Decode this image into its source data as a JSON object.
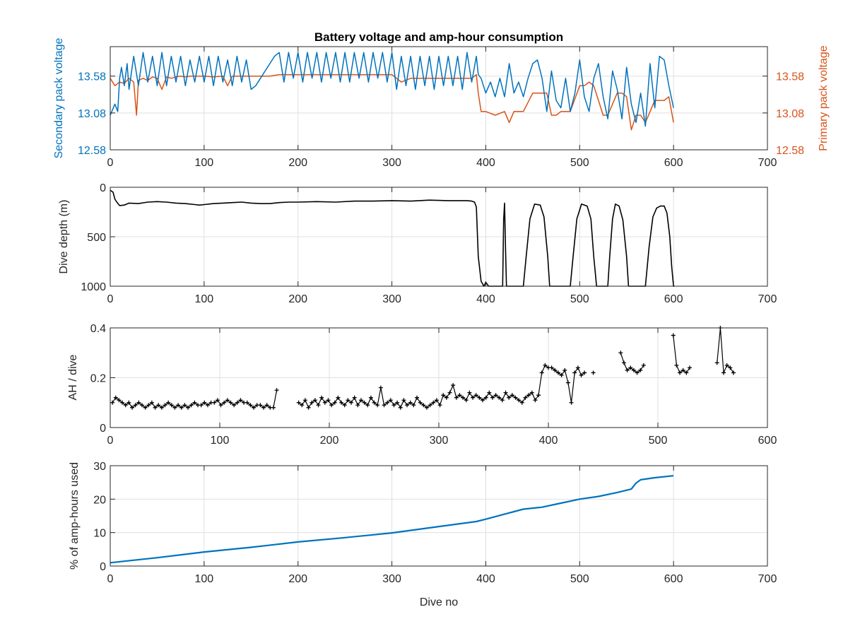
{
  "chart_data": [
    {
      "type": "line",
      "title": "Battery voltage and amp-hour consumption",
      "xlim": [
        0,
        700
      ],
      "xticks": [
        0,
        100,
        200,
        300,
        400,
        500,
        600,
        700
      ],
      "grid": true,
      "y_left": {
        "label": "Secondary pack voltage",
        "lim": [
          12.58,
          13.98
        ],
        "ticks": [
          "12.58",
          "13.08",
          "13.58"
        ],
        "color": "#0072BD"
      },
      "y_right": {
        "label": "Primary pack voltage",
        "lim": [
          12.58,
          13.98
        ],
        "ticks": [
          "12.58",
          "13.08",
          "13.58"
        ],
        "color": "#D95319"
      },
      "series": [
        {
          "name": "Secondary pack voltage",
          "axis": "left",
          "color": "#0072BD",
          "x": [
            0,
            5,
            8,
            10,
            12,
            15,
            18,
            20,
            25,
            30,
            35,
            40,
            45,
            50,
            55,
            60,
            65,
            70,
            75,
            80,
            85,
            90,
            95,
            100,
            105,
            110,
            115,
            120,
            125,
            130,
            135,
            140,
            145,
            150,
            155,
            160,
            165,
            170,
            175,
            180,
            185,
            190,
            195,
            200,
            205,
            210,
            215,
            220,
            225,
            230,
            235,
            240,
            245,
            250,
            255,
            260,
            265,
            270,
            275,
            280,
            285,
            290,
            295,
            300,
            305,
            310,
            315,
            320,
            325,
            330,
            335,
            340,
            345,
            350,
            355,
            360,
            365,
            370,
            375,
            380,
            385,
            390,
            392,
            395,
            400,
            405,
            410,
            415,
            420,
            425,
            430,
            435,
            440,
            445,
            450,
            455,
            460,
            465,
            470,
            475,
            480,
            485,
            490,
            495,
            500,
            505,
            510,
            515,
            520,
            525,
            530,
            535,
            540,
            545,
            550,
            555,
            560,
            565,
            570,
            575,
            580,
            585,
            590,
            595,
            600
          ],
          "y": [
            13.05,
            13.2,
            13.1,
            13.55,
            13.7,
            13.45,
            13.75,
            13.4,
            13.85,
            13.45,
            13.9,
            13.5,
            13.85,
            13.45,
            13.9,
            13.45,
            13.85,
            13.5,
            13.85,
            13.45,
            13.8,
            13.5,
            13.85,
            13.5,
            13.85,
            13.45,
            13.85,
            13.5,
            13.8,
            13.45,
            13.85,
            13.5,
            13.8,
            13.4,
            13.45,
            13.55,
            13.65,
            13.75,
            13.85,
            13.9,
            13.5,
            13.9,
            13.55,
            13.9,
            13.5,
            13.9,
            13.55,
            13.9,
            13.5,
            13.9,
            13.55,
            13.9,
            13.5,
            13.9,
            13.5,
            13.9,
            13.55,
            13.9,
            13.5,
            13.9,
            13.55,
            13.9,
            13.5,
            13.9,
            13.4,
            13.85,
            13.45,
            13.85,
            13.4,
            13.85,
            13.45,
            13.85,
            13.4,
            13.85,
            13.45,
            13.85,
            13.45,
            13.85,
            13.4,
            13.9,
            13.5,
            13.85,
            13.6,
            13.55,
            13.35,
            13.5,
            13.3,
            13.55,
            13.3,
            13.75,
            13.35,
            13.5,
            13.3,
            13.55,
            13.75,
            13.8,
            13.55,
            13.1,
            13.65,
            13.25,
            13.15,
            13.55,
            13.1,
            13.35,
            13.8,
            13.3,
            13.1,
            13.55,
            13.75,
            13.3,
            13.0,
            13.65,
            13.4,
            13.0,
            13.7,
            13.2,
            12.95,
            13.35,
            12.9,
            13.75,
            13.15,
            13.85,
            13.8,
            13.45,
            13.15
          ]
        },
        {
          "name": "Primary pack voltage",
          "axis": "right",
          "color": "#D95319",
          "x": [
            0,
            5,
            10,
            15,
            20,
            25,
            28,
            30,
            35,
            40,
            45,
            50,
            55,
            60,
            65,
            70,
            75,
            80,
            85,
            90,
            95,
            100,
            110,
            120,
            125,
            130,
            140,
            150,
            160,
            170,
            180,
            190,
            200,
            210,
            220,
            230,
            240,
            250,
            260,
            270,
            280,
            290,
            300,
            310,
            320,
            330,
            340,
            350,
            360,
            370,
            380,
            385,
            390,
            392,
            395,
            400,
            410,
            420,
            425,
            430,
            440,
            450,
            455,
            460,
            465,
            470,
            475,
            480,
            490,
            500,
            505,
            510,
            515,
            520,
            525,
            530,
            540,
            545,
            550,
            555,
            560,
            565,
            570,
            580,
            590,
            595,
            600
          ],
          "y": [
            13.55,
            13.45,
            13.5,
            13.48,
            13.55,
            13.5,
            13.05,
            13.52,
            13.55,
            13.52,
            13.57,
            13.55,
            13.4,
            13.57,
            13.55,
            13.57,
            13.58,
            13.57,
            13.58,
            13.58,
            13.58,
            13.58,
            13.57,
            13.58,
            13.45,
            13.58,
            13.58,
            13.58,
            13.58,
            13.58,
            13.6,
            13.6,
            13.6,
            13.6,
            13.6,
            13.6,
            13.6,
            13.6,
            13.6,
            13.6,
            13.6,
            13.6,
            13.6,
            13.5,
            13.55,
            13.55,
            13.55,
            13.55,
            13.55,
            13.55,
            13.55,
            13.55,
            13.6,
            13.35,
            13.1,
            13.1,
            13.05,
            13.1,
            12.95,
            13.1,
            13.1,
            13.35,
            13.35,
            13.35,
            13.35,
            13.05,
            13.05,
            13.1,
            13.1,
            13.45,
            13.45,
            13.5,
            13.45,
            13.25,
            13.05,
            13.05,
            13.35,
            13.35,
            13.3,
            12.85,
            13.05,
            13.05,
            12.95,
            13.25,
            13.25,
            13.3,
            12.95
          ]
        }
      ]
    },
    {
      "type": "line",
      "xlim": [
        0,
        700
      ],
      "xticks": [
        0,
        100,
        200,
        300,
        400,
        500,
        600,
        700
      ],
      "ylabel": "Dive depth (m)",
      "ylim": [
        0,
        1000
      ],
      "y_reversed": true,
      "yticks": [
        0,
        500,
        1000
      ],
      "grid": true,
      "series": [
        {
          "color": "#000000",
          "x": [
            0,
            3,
            5,
            7,
            10,
            15,
            20,
            30,
            40,
            50,
            60,
            70,
            80,
            90,
            95,
            100,
            110,
            120,
            130,
            140,
            150,
            160,
            170,
            180,
            190,
            200,
            220,
            240,
            260,
            280,
            300,
            320,
            340,
            360,
            370,
            380,
            385,
            388,
            390,
            392,
            395,
            398,
            400,
            403,
            405,
            418,
            419,
            420,
            421,
            422,
            440,
            443,
            447,
            452,
            458,
            462,
            466,
            468,
            470,
            490,
            493,
            497,
            502,
            508,
            512,
            515,
            518,
            520,
            530,
            532,
            535,
            538,
            542,
            546,
            550,
            552,
            570,
            574,
            578,
            582,
            586,
            590,
            593,
            596,
            598,
            600,
            601
          ],
          "y": [
            30,
            50,
            120,
            150,
            185,
            180,
            160,
            165,
            150,
            145,
            150,
            160,
            165,
            175,
            180,
            175,
            165,
            160,
            155,
            150,
            160,
            165,
            165,
            155,
            150,
            150,
            145,
            150,
            140,
            140,
            135,
            140,
            130,
            135,
            135,
            135,
            140,
            150,
            200,
            700,
            950,
            1000,
            960,
            1000,
            1000,
            1000,
            330,
            160,
            600,
            1000,
            1000,
            700,
            320,
            170,
            180,
            300,
            700,
            1000,
            1000,
            1000,
            700,
            320,
            170,
            190,
            320,
            700,
            1000,
            1000,
            1000,
            700,
            320,
            170,
            190,
            330,
            700,
            1000,
            1000,
            600,
            300,
            210,
            190,
            190,
            260,
            500,
            800,
            1000,
            1000
          ]
        }
      ]
    },
    {
      "type": "scatter",
      "xlim": [
        0,
        600
      ],
      "xticks": [
        0,
        100,
        200,
        300,
        400,
        500,
        600
      ],
      "ylabel": "AH / dive",
      "ylim": [
        0,
        0.4
      ],
      "yticks": [
        "0",
        "0.2",
        "0.4"
      ],
      "grid": true,
      "series": [
        {
          "color": "#000000",
          "x": [
            2,
            5,
            8,
            11,
            14,
            17,
            20,
            23,
            26,
            29,
            32,
            35,
            38,
            41,
            44,
            47,
            50,
            53,
            56,
            59,
            62,
            65,
            68,
            71,
            74,
            77,
            80,
            83,
            86,
            89,
            92,
            95,
            98,
            101,
            104,
            107,
            110,
            113,
            116,
            119,
            122,
            125,
            128,
            131,
            134,
            137,
            140,
            143,
            146,
            149,
            152,
            172,
            175,
            178,
            181,
            184,
            187,
            190,
            193,
            196,
            199,
            202,
            205,
            208,
            211,
            214,
            217,
            220,
            223,
            226,
            229,
            232,
            235,
            238,
            241,
            244,
            247,
            250,
            253,
            256,
            259,
            262,
            265,
            268,
            271,
            274,
            277,
            280,
            283,
            286,
            289,
            292,
            295,
            298,
            301,
            304,
            307,
            310,
            313,
            316,
            319,
            322,
            325,
            328,
            331,
            334,
            337,
            340,
            343,
            346,
            349,
            352,
            355,
            358,
            361,
            364,
            367,
            370,
            373,
            376,
            379,
            382,
            385,
            388,
            391,
            394,
            397,
            400,
            403,
            406,
            409,
            412,
            415,
            418,
            421,
            424,
            427,
            430,
            433,
            441,
            466,
            469,
            472,
            475,
            478,
            481,
            484,
            487,
            514,
            517,
            520,
            523,
            526,
            529,
            554,
            557,
            560,
            563,
            566,
            569
          ],
          "y": [
            0.1,
            0.12,
            0.11,
            0.1,
            0.09,
            0.1,
            0.08,
            0.09,
            0.1,
            0.09,
            0.08,
            0.09,
            0.1,
            0.08,
            0.09,
            0.08,
            0.09,
            0.1,
            0.09,
            0.08,
            0.09,
            0.08,
            0.09,
            0.08,
            0.09,
            0.1,
            0.09,
            0.09,
            0.1,
            0.09,
            0.1,
            0.1,
            0.11,
            0.09,
            0.1,
            0.11,
            0.1,
            0.09,
            0.1,
            0.11,
            0.1,
            0.1,
            0.09,
            0.08,
            0.09,
            0.09,
            0.08,
            0.09,
            0.08,
            0.08,
            0.15,
            0.1,
            0.09,
            0.11,
            0.08,
            0.1,
            0.11,
            0.09,
            0.12,
            0.1,
            0.11,
            0.09,
            0.1,
            0.12,
            0.1,
            0.09,
            0.11,
            0.1,
            0.12,
            0.09,
            0.11,
            0.1,
            0.09,
            0.12,
            0.1,
            0.09,
            0.16,
            0.09,
            0.1,
            0.11,
            0.09,
            0.1,
            0.08,
            0.11,
            0.09,
            0.1,
            0.09,
            0.12,
            0.1,
            0.09,
            0.08,
            0.09,
            0.1,
            0.11,
            0.09,
            0.13,
            0.12,
            0.14,
            0.17,
            0.12,
            0.13,
            0.12,
            0.11,
            0.14,
            0.12,
            0.13,
            0.12,
            0.11,
            0.12,
            0.14,
            0.12,
            0.13,
            0.12,
            0.11,
            0.14,
            0.12,
            0.13,
            0.12,
            0.11,
            0.1,
            0.12,
            0.13,
            0.14,
            0.11,
            0.13,
            0.22,
            0.25,
            0.24,
            0.24,
            0.23,
            0.22,
            0.21,
            0.23,
            0.18,
            0.1,
            0.22,
            0.24,
            0.21,
            0.22,
            0.22,
            0.3,
            0.26,
            0.23,
            0.24,
            0.23,
            0.22,
            0.23,
            0.25,
            0.37,
            0.25,
            0.22,
            0.23,
            0.22,
            0.24,
            0.26,
            0.4,
            0.22,
            0.25,
            0.24,
            0.22
          ]
        }
      ]
    },
    {
      "type": "line",
      "xlim": [
        0,
        700
      ],
      "xticks": [
        0,
        100,
        200,
        300,
        400,
        500,
        600,
        700
      ],
      "xlabel": "Dive no",
      "ylabel": "% of amp-hours used",
      "ylim": [
        0,
        30
      ],
      "yticks": [
        0,
        10,
        20,
        30
      ],
      "grid": true,
      "series": [
        {
          "color": "#0072BD",
          "x": [
            0,
            50,
            100,
            150,
            200,
            250,
            300,
            350,
            390,
            400,
            420,
            440,
            460,
            480,
            500,
            520,
            540,
            555,
            560,
            565,
            580,
            600
          ],
          "y": [
            1.0,
            2.5,
            4.2,
            5.6,
            7.2,
            8.5,
            9.9,
            11.8,
            13.3,
            14.0,
            15.5,
            17.0,
            17.6,
            18.8,
            20.0,
            20.8,
            22.0,
            23.0,
            24.8,
            25.8,
            26.4,
            27.0
          ]
        }
      ]
    }
  ]
}
